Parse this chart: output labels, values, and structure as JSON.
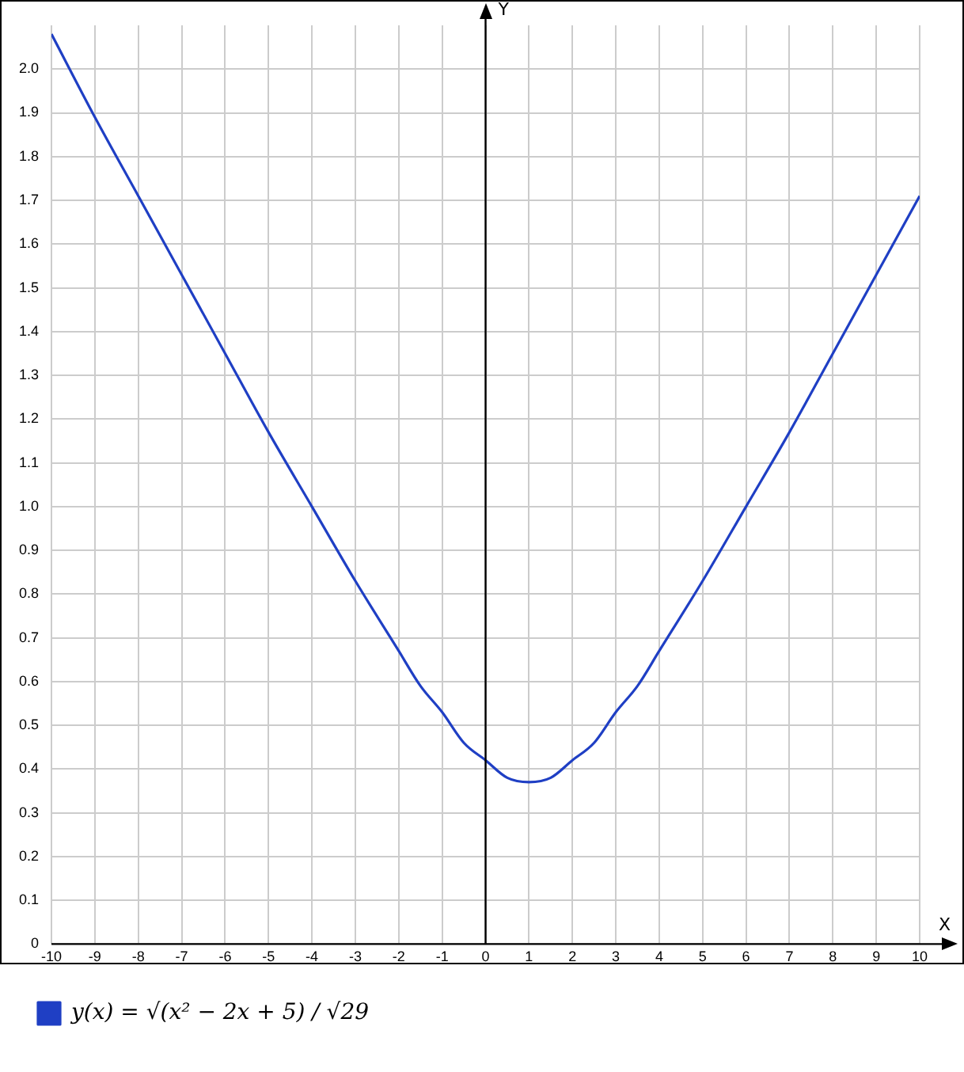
{
  "chart_data": {
    "type": "line",
    "xlabel": "X",
    "ylabel": "Y",
    "x": [
      -10,
      -9,
      -8,
      -7,
      -6,
      -5,
      -4,
      -3,
      -2,
      -1.5,
      -1,
      -0.5,
      0,
      0.5,
      1,
      1.5,
      2,
      2.5,
      3,
      3.5,
      4,
      5,
      6,
      7,
      8,
      9,
      10
    ],
    "series": [
      {
        "name": "y(x) = √(x² − 2x + 5) / √29",
        "color": "#1f3fc4",
        "values": [
          2.08,
          1.89,
          1.71,
          1.53,
          1.35,
          1.17,
          1.0,
          0.83,
          0.67,
          0.59,
          0.53,
          0.46,
          0.42,
          0.38,
          0.37,
          0.38,
          0.42,
          0.46,
          0.53,
          0.59,
          0.67,
          0.83,
          1.0,
          1.17,
          1.35,
          1.53,
          1.71
        ]
      }
    ],
    "xlim": [
      -10,
      10
    ],
    "xticks": [
      -10,
      -9,
      -8,
      -7,
      -6,
      -5,
      -4,
      -3,
      -2,
      -1,
      0,
      1,
      2,
      3,
      4,
      5,
      6,
      7,
      8,
      9,
      10
    ],
    "ylim": [
      0,
      2.1
    ],
    "yticks": [
      0,
      {
        "value": 0.1,
        "label": "0.1"
      },
      {
        "value": 0.2,
        "label": "0.2"
      },
      {
        "value": 0.3,
        "label": "0.3"
      },
      {
        "value": 0.4,
        "label": "0.4"
      },
      {
        "value": 0.5,
        "label": "0.5"
      },
      {
        "value": 0.6,
        "label": "0.6"
      },
      {
        "value": 0.7,
        "label": "0.7"
      },
      {
        "value": 0.8,
        "label": "0.8"
      },
      {
        "value": 0.9,
        "label": "0.9"
      },
      {
        "value": 1.0,
        "label": "1.0"
      },
      {
        "value": 1.1,
        "label": "1.1"
      },
      {
        "value": 1.2,
        "label": "1.2"
      },
      {
        "value": 1.3,
        "label": "1.3"
      },
      {
        "value": 1.4,
        "label": "1.4"
      },
      {
        "value": 1.5,
        "label": "1.5"
      },
      {
        "value": 1.6,
        "label": "1.6"
      },
      {
        "value": 1.7,
        "label": "1.7"
      },
      {
        "value": 1.8,
        "label": "1.8"
      },
      {
        "value": 1.9,
        "label": "1.9"
      },
      {
        "value": 2.0,
        "label": "2.0"
      }
    ],
    "grid": true,
    "legend": "bottom left",
    "marker": "none",
    "line_style": "solid"
  }
}
